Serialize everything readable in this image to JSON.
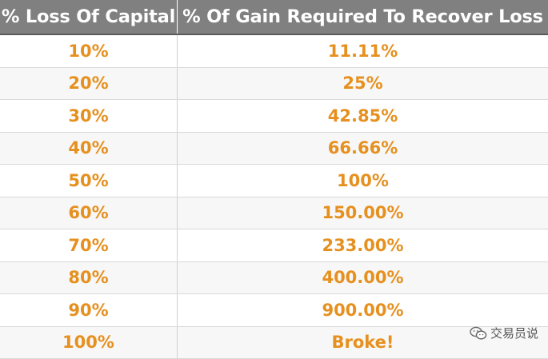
{
  "chart_data": {
    "type": "table",
    "columns": [
      "% Loss Of Capital",
      "% Of Gain Required To Recover Loss"
    ],
    "rows": [
      [
        "10%",
        "11.11%"
      ],
      [
        "20%",
        "25%"
      ],
      [
        "30%",
        "42.85%"
      ],
      [
        "40%",
        "66.66%"
      ],
      [
        "50%",
        "100%"
      ],
      [
        "60%",
        "150.00%"
      ],
      [
        "70%",
        "233.00%"
      ],
      [
        "80%",
        "400.00%"
      ],
      [
        "90%",
        "900.00%"
      ],
      [
        "100%",
        "Broke!"
      ]
    ],
    "colors": {
      "header_bg": "#808080",
      "header_text": "#ffffff",
      "value_text": "#e6901f"
    }
  },
  "watermark": {
    "icon": "wechat-icon",
    "text": "交易员说"
  }
}
